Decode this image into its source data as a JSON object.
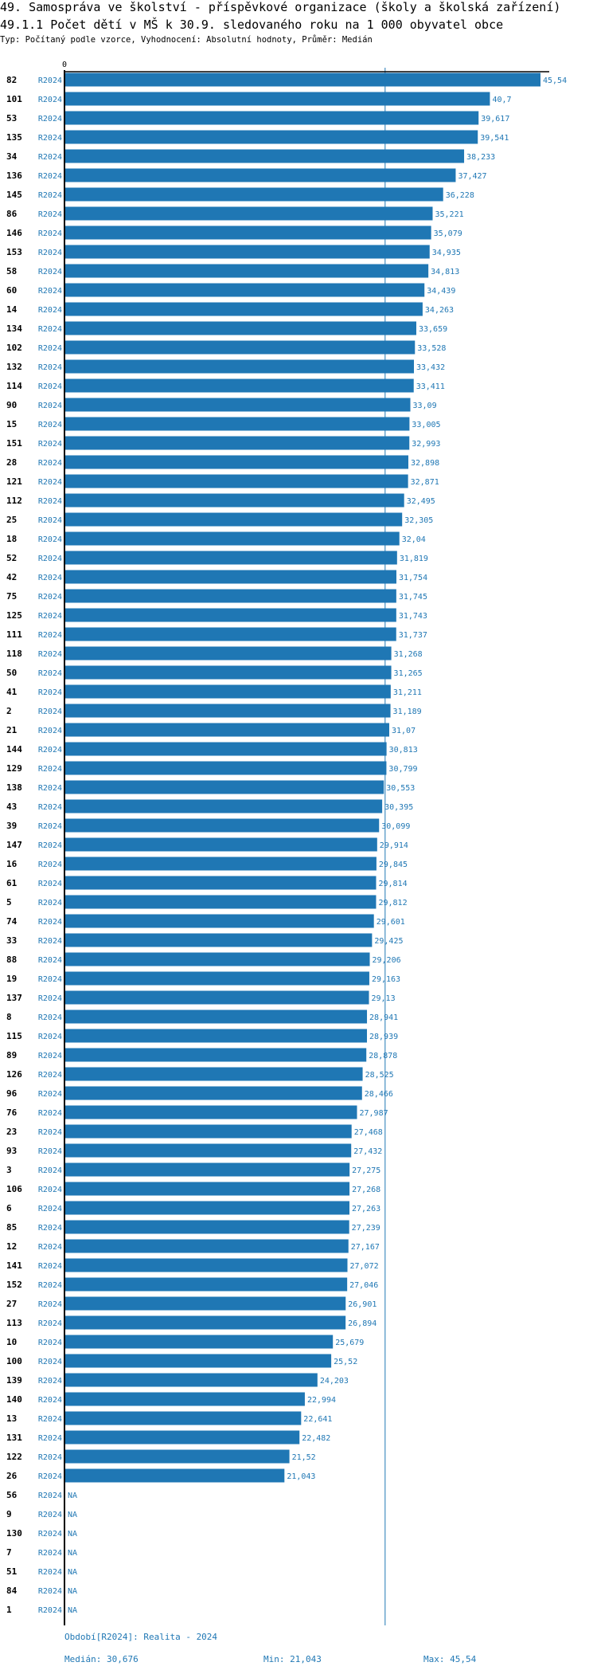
{
  "header": {
    "title": "49. Samospráva ve školství - příspěvkové organizace (školy a školská zařízení)",
    "subtitle": "49.1.1 Počet dětí v MŠ k 30.9. sledovaného roku na 1 000 obyvatel obce",
    "meta": "Typ: Počítaný podle vzorce, Vyhodnocení: Absolutní hodnoty, Průměr: Medián"
  },
  "colors": {
    "bar": "#1f77b4",
    "text": "#1f77b4",
    "axis": "#000000"
  },
  "chart_data": {
    "type": "bar",
    "orientation": "horizontal",
    "x_tick_label": "0",
    "xlim": [
      0,
      45.54
    ],
    "period": "R2024",
    "median": 30.676,
    "categories": [
      "82",
      "101",
      "53",
      "135",
      "34",
      "136",
      "145",
      "86",
      "146",
      "153",
      "58",
      "60",
      "14",
      "134",
      "102",
      "132",
      "114",
      "90",
      "15",
      "151",
      "28",
      "121",
      "112",
      "25",
      "18",
      "52",
      "42",
      "75",
      "125",
      "111",
      "118",
      "50",
      "41",
      "2",
      "21",
      "144",
      "129",
      "138",
      "43",
      "39",
      "147",
      "16",
      "61",
      "5",
      "74",
      "33",
      "88",
      "19",
      "137",
      "8",
      "115",
      "89",
      "126",
      "96",
      "76",
      "23",
      "93",
      "3",
      "106",
      "6",
      "85",
      "12",
      "141",
      "152",
      "27",
      "113",
      "10",
      "100",
      "139",
      "140",
      "13",
      "131",
      "122",
      "26",
      "56",
      "9",
      "130",
      "7",
      "51",
      "84",
      "1"
    ],
    "values": [
      45.54,
      40.7,
      39.617,
      39.541,
      38.233,
      37.427,
      36.228,
      35.221,
      35.079,
      34.935,
      34.813,
      34.439,
      34.263,
      33.659,
      33.528,
      33.432,
      33.411,
      33.09,
      33.005,
      32.993,
      32.898,
      32.871,
      32.495,
      32.305,
      32.04,
      31.819,
      31.754,
      31.745,
      31.743,
      31.737,
      31.268,
      31.265,
      31.211,
      31.189,
      31.07,
      30.813,
      30.799,
      30.553,
      30.395,
      30.099,
      29.914,
      29.845,
      29.814,
      29.812,
      29.601,
      29.425,
      29.206,
      29.163,
      29.13,
      28.941,
      28.939,
      28.878,
      28.525,
      28.466,
      27.987,
      27.468,
      27.432,
      27.275,
      27.268,
      27.263,
      27.239,
      27.167,
      27.072,
      27.046,
      26.901,
      26.894,
      25.679,
      25.52,
      24.203,
      22.994,
      22.641,
      22.482,
      21.52,
      21.043,
      null,
      null,
      null,
      null,
      null,
      null,
      null
    ],
    "labels": [
      "45,54",
      "40,7",
      "39,617",
      "39,541",
      "38,233",
      "37,427",
      "36,228",
      "35,221",
      "35,079",
      "34,935",
      "34,813",
      "34,439",
      "34,263",
      "33,659",
      "33,528",
      "33,432",
      "33,411",
      "33,09",
      "33,005",
      "32,993",
      "32,898",
      "32,871",
      "32,495",
      "32,305",
      "32,04",
      "31,819",
      "31,754",
      "31,745",
      "31,743",
      "31,737",
      "31,268",
      "31,265",
      "31,211",
      "31,189",
      "31,07",
      "30,813",
      "30,799",
      "30,553",
      "30,395",
      "30,099",
      "29,914",
      "29,845",
      "29,814",
      "29,812",
      "29,601",
      "29,425",
      "29,206",
      "29,163",
      "29,13",
      "28,941",
      "28,939",
      "28,878",
      "28,525",
      "28,466",
      "27,987",
      "27,468",
      "27,432",
      "27,275",
      "27,268",
      "27,263",
      "27,239",
      "27,167",
      "27,072",
      "27,046",
      "26,901",
      "26,894",
      "25,679",
      "25,52",
      "24,203",
      "22,994",
      "22,641",
      "22,482",
      "21,52",
      "21,043",
      "NA",
      "NA",
      "NA",
      "NA",
      "NA",
      "NA",
      "NA"
    ]
  },
  "footer": {
    "period_text": "Období[R2024]: Realita - 2024",
    "median_text": "Medián: 30,676",
    "min_text": "Min: 21,043",
    "max_text": "Max: 45,54"
  }
}
